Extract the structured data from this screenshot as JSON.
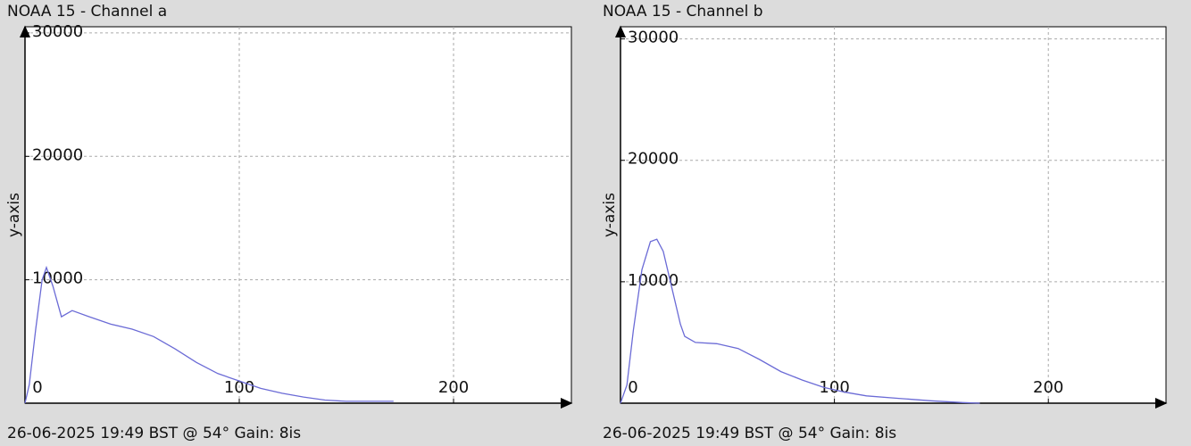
{
  "chart_data": [
    {
      "type": "line",
      "title": "NOAA 15 - Channel a",
      "y_label": "y-axis",
      "footer": "26-06-2025 19:49 BST @ 54° Gain: 8is",
      "x": [
        0,
        2,
        5,
        8,
        10,
        13,
        17,
        22,
        30,
        40,
        50,
        60,
        70,
        80,
        90,
        100,
        110,
        120,
        130,
        140,
        150,
        160,
        172
      ],
      "series": [
        {
          "color": "#6b6bd6",
          "values": [
            0,
            1500,
            6000,
            10000,
            11000,
            9500,
            7000,
            7500,
            7000,
            6400,
            6000,
            5400,
            4400,
            3300,
            2400,
            1800,
            1200,
            800,
            500,
            250,
            150,
            150,
            150
          ]
        }
      ],
      "xlim": [
        0,
        255
      ],
      "ylim": [
        0,
        30500
      ],
      "xticks": [
        0,
        100,
        200
      ],
      "yticks": [
        10000,
        20000,
        30000
      ],
      "grid": true
    },
    {
      "type": "line",
      "title": "NOAA 15 - Channel b",
      "y_label": "y-axis",
      "footer": "26-06-2025 19:49 BST @ 54° Gain: 8is",
      "x": [
        0,
        3,
        6,
        10,
        14,
        17,
        20,
        24,
        28,
        30,
        35,
        45,
        55,
        65,
        75,
        85,
        95,
        105,
        115,
        130,
        145,
        160,
        168
      ],
      "series": [
        {
          "color": "#6b6bd6",
          "values": [
            0,
            1500,
            6000,
            11000,
            13300,
            13500,
            12500,
            9500,
            6500,
            5500,
            5000,
            4900,
            4500,
            3600,
            2600,
            1900,
            1300,
            900,
            600,
            400,
            200,
            50,
            0
          ]
        }
      ],
      "xlim": [
        0,
        255
      ],
      "ylim": [
        0,
        31000
      ],
      "xticks": [
        0,
        100,
        200
      ],
      "yticks": [
        10000,
        20000,
        30000
      ],
      "grid": true
    }
  ]
}
